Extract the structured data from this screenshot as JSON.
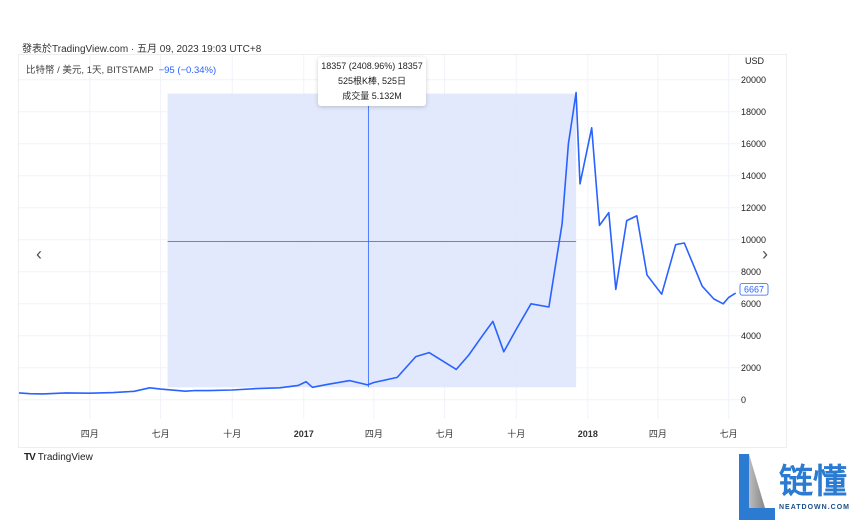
{
  "header": {
    "published": "發表於TradingView.com · 五月 09, 2023 19:03 UTC+8"
  },
  "symbol": {
    "name": "比特幣 / 美元, 1天, BITSTAMP",
    "change": "−95 (−0.34%)"
  },
  "tooltip": {
    "line1": "18357 (2408.96%) 18357",
    "line2": "525根K棒, 525日",
    "line3": "成交量 5.132M"
  },
  "footer": {
    "brand": "TradingView",
    "logo": "TV"
  },
  "watermark": {
    "text": "链懂",
    "sub": "NEATDOWN.COM"
  },
  "colors": {
    "line": "#2962ff",
    "measure_fill": "#dde5fb",
    "grid": "#f0f3fa"
  },
  "chart_data": {
    "type": "line",
    "currency_label": "USD",
    "ylim": [
      -1200,
      20800
    ],
    "y_ticks": [
      0,
      2000,
      4000,
      6000,
      8000,
      10000,
      12000,
      14000,
      16000,
      18000,
      20000
    ],
    "x_ticks": [
      {
        "date": "2016-04-01",
        "label": "四月"
      },
      {
        "date": "2016-07-01",
        "label": "七月"
      },
      {
        "date": "2016-10-01",
        "label": "十月"
      },
      {
        "date": "2017-01-01",
        "label": "2017"
      },
      {
        "date": "2017-04-01",
        "label": "四月"
      },
      {
        "date": "2017-07-01",
        "label": "七月"
      },
      {
        "date": "2017-10-01",
        "label": "十月"
      },
      {
        "date": "2018-01-01",
        "label": "2018"
      },
      {
        "date": "2018-04-01",
        "label": "四月"
      },
      {
        "date": "2018-07-01",
        "label": "七月"
      }
    ],
    "xlim": [
      "2016-01-01",
      "2018-07-22"
    ],
    "last_price": "6667",
    "measure": {
      "start_date": "2016-07-10",
      "end_date": "2017-12-17",
      "low": 780,
      "high": 19140
    },
    "crosshair": {
      "date": "2017-03-25",
      "price": 9900
    },
    "grid": true,
    "series": [
      {
        "points": [
          [
            "2016-01-01",
            430
          ],
          [
            "2016-01-15",
            380
          ],
          [
            "2016-02-01",
            370
          ],
          [
            "2016-03-01",
            430
          ],
          [
            "2016-04-01",
            415
          ],
          [
            "2016-05-01",
            450
          ],
          [
            "2016-05-28",
            530
          ],
          [
            "2016-06-17",
            750
          ],
          [
            "2016-07-01",
            670
          ],
          [
            "2016-08-02",
            540
          ],
          [
            "2016-08-15",
            580
          ],
          [
            "2016-09-01",
            575
          ],
          [
            "2016-10-01",
            610
          ],
          [
            "2016-11-01",
            700
          ],
          [
            "2016-12-01",
            750
          ],
          [
            "2016-12-25",
            900
          ],
          [
            "2017-01-04",
            1130
          ],
          [
            "2017-01-12",
            780
          ],
          [
            "2017-02-01",
            970
          ],
          [
            "2017-03-01",
            1200
          ],
          [
            "2017-03-24",
            930
          ],
          [
            "2017-04-01",
            1080
          ],
          [
            "2017-05-01",
            1400
          ],
          [
            "2017-05-25",
            2700
          ],
          [
            "2017-06-11",
            2950
          ],
          [
            "2017-07-16",
            1900
          ],
          [
            "2017-08-01",
            2800
          ],
          [
            "2017-08-20",
            4100
          ],
          [
            "2017-09-01",
            4900
          ],
          [
            "2017-09-15",
            3000
          ],
          [
            "2017-10-01",
            4400
          ],
          [
            "2017-10-20",
            6000
          ],
          [
            "2017-11-12",
            5800
          ],
          [
            "2017-11-29",
            11000
          ],
          [
            "2017-12-07",
            16000
          ],
          [
            "2017-12-17",
            19200
          ],
          [
            "2017-12-22",
            13500
          ],
          [
            "2018-01-06",
            17000
          ],
          [
            "2018-01-16",
            10900
          ],
          [
            "2018-01-28",
            11700
          ],
          [
            "2018-02-06",
            6900
          ],
          [
            "2018-02-20",
            11200
          ],
          [
            "2018-03-05",
            11500
          ],
          [
            "2018-03-18",
            7800
          ],
          [
            "2018-04-06",
            6600
          ],
          [
            "2018-04-24",
            9700
          ],
          [
            "2018-05-05",
            9800
          ],
          [
            "2018-05-28",
            7100
          ],
          [
            "2018-06-12",
            6300
          ],
          [
            "2018-06-24",
            6000
          ],
          [
            "2018-07-01",
            6400
          ],
          [
            "2018-07-10",
            6667
          ]
        ]
      }
    ]
  }
}
